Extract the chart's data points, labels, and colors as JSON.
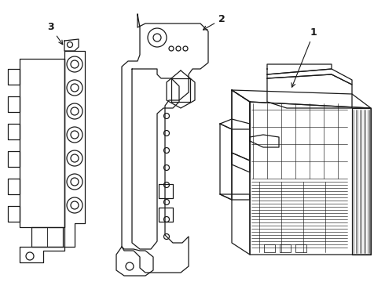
{
  "bg_color": "#ffffff",
  "line_color": "#1a1a1a",
  "lw": 0.9,
  "fig_w": 4.9,
  "fig_h": 3.6,
  "dpi": 100,
  "xlim": [
    0,
    490
  ],
  "ylim": [
    0,
    360
  ]
}
